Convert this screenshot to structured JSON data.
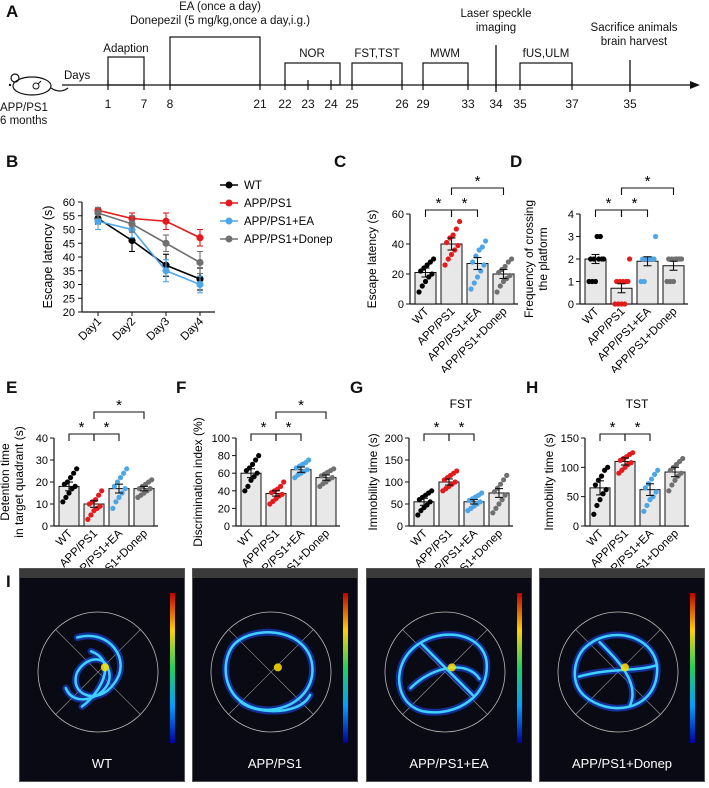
{
  "panel_letters": [
    "A",
    "B",
    "C",
    "D",
    "E",
    "F",
    "G",
    "H",
    "I"
  ],
  "timeline": {
    "model_label": "APP/PS1",
    "age_label": "6 months",
    "days_label": "Days",
    "ticks": [
      "1",
      "7",
      "8",
      "21",
      "22",
      "23",
      "24",
      "25",
      "26",
      "29",
      "33",
      "34",
      "35",
      "37",
      "35"
    ],
    "events": {
      "ea": "EA (once a day)",
      "donepezil": "Donepezil (5 mg/kg,once a day,i.g.)",
      "adaption": "Adaption",
      "nor": "NOR",
      "fst_tst": "FST,TST",
      "mwm": "MWM",
      "laser_line1": "Laser speckle",
      "laser_line2": "imaging",
      "fus": "fUS,ULM",
      "sac_line1": "Sacrifice animals",
      "sac_line2": "brain harvest"
    }
  },
  "groups": [
    "WT",
    "APP/PS1",
    "APP/PS1+EA",
    "APP/PS1+Donep"
  ],
  "colors": {
    "wt": "#000000",
    "app": "#e41a1c",
    "ea": "#4da6e8",
    "donep": "#707070",
    "bar": "#e8e8e8",
    "heat_bg": "#0a0a14"
  },
  "chart_data": [
    {
      "panel": "B",
      "type": "line",
      "ylabel": "Escape latency (s)",
      "categories": [
        "Day1",
        "Day2",
        "Day3",
        "Day4"
      ],
      "ylim": [
        20,
        60
      ],
      "yticks": [
        20,
        25,
        30,
        35,
        40,
        45,
        50,
        55,
        60
      ],
      "legend_position": "right",
      "series": [
        {
          "name": "WT",
          "values": [
            54,
            46,
            37,
            32
          ],
          "err": [
            2,
            4,
            4,
            4
          ]
        },
        {
          "name": "APP/PS1",
          "values": [
            57,
            54,
            53,
            47
          ],
          "err": [
            1,
            2,
            3,
            3
          ]
        },
        {
          "name": "APP/PS1+EA",
          "values": [
            53,
            50,
            35,
            30
          ],
          "err": [
            3,
            3,
            4,
            3
          ]
        },
        {
          "name": "APP/PS1+Donep",
          "values": [
            56,
            52,
            45,
            38
          ],
          "err": [
            2,
            3,
            3,
            4
          ]
        }
      ]
    },
    {
      "panel": "C",
      "type": "bar",
      "ylabel": "Escape latency (s)",
      "ylim": [
        0,
        60
      ],
      "yticks": [
        0,
        20,
        40,
        60
      ],
      "means": [
        21,
        40,
        27,
        20
      ],
      "sem": [
        3,
        4,
        4,
        3
      ],
      "points": [
        [
          8,
          12,
          15,
          18,
          20,
          22,
          24,
          26,
          28,
          30
        ],
        [
          26,
          30,
          33,
          36,
          39,
          41,
          44,
          46,
          50,
          55
        ],
        [
          10,
          14,
          18,
          22,
          26,
          28,
          32,
          36,
          38,
          42
        ],
        [
          8,
          12,
          15,
          17,
          19,
          21,
          23,
          25,
          28,
          30
        ]
      ],
      "significance": [
        {
          "from": 0,
          "to": 1,
          "level": 0,
          "label": "*"
        },
        {
          "from": 1,
          "to": 2,
          "level": 0,
          "label": "*"
        },
        {
          "from": 1,
          "to": 3,
          "level": 1,
          "label": "*"
        }
      ]
    },
    {
      "panel": "D",
      "type": "bar",
      "ylabel_line1": "Frequency of crossing",
      "ylabel_line2": "the platform",
      "ylim": [
        0,
        4
      ],
      "yticks": [
        0,
        1,
        2,
        3,
        4
      ],
      "means": [
        2.0,
        0.7,
        1.9,
        1.7
      ],
      "sem": [
        0.2,
        0.2,
        0.2,
        0.2
      ],
      "points": [
        [
          1,
          1,
          1,
          2,
          2,
          2,
          2,
          3,
          3,
          2
        ],
        [
          0,
          0,
          0,
          0,
          1,
          1,
          1,
          1,
          1,
          2
        ],
        [
          1,
          1,
          2,
          2,
          2,
          2,
          2,
          2,
          2,
          3
        ],
        [
          1,
          1,
          1,
          2,
          2,
          2,
          2,
          2,
          2,
          2
        ]
      ],
      "significance": [
        {
          "from": 0,
          "to": 1,
          "level": 0,
          "label": "*"
        },
        {
          "from": 1,
          "to": 2,
          "level": 0,
          "label": "*"
        },
        {
          "from": 1,
          "to": 3,
          "level": 1,
          "label": "*"
        }
      ]
    },
    {
      "panel": "E",
      "type": "bar",
      "ylabel_line1": "Detention time",
      "ylabel_line2": "in target quadrant (s)",
      "ylim": [
        0,
        40
      ],
      "yticks": [
        0,
        10,
        20,
        30,
        40
      ],
      "means": [
        18,
        10,
        17,
        17
      ],
      "sem": [
        2,
        1.5,
        2,
        1
      ],
      "points": [
        [
          11,
          13,
          15,
          17,
          18,
          19,
          20,
          22,
          24,
          26
        ],
        [
          3,
          5,
          7,
          8,
          9,
          10,
          11,
          12,
          14,
          16
        ],
        [
          8,
          11,
          13,
          15,
          17,
          18,
          20,
          22,
          24,
          26
        ],
        [
          13,
          14,
          15,
          16,
          17,
          17,
          18,
          19,
          20,
          21
        ]
      ],
      "significance": [
        {
          "from": 0,
          "to": 1,
          "level": 0,
          "label": "*"
        },
        {
          "from": 1,
          "to": 2,
          "level": 0,
          "label": "*"
        },
        {
          "from": 1,
          "to": 3,
          "level": 1,
          "label": "*"
        }
      ]
    },
    {
      "panel": "F",
      "type": "bar",
      "ylabel": "Discrimination index (%)",
      "ylim": [
        0,
        100
      ],
      "yticks": [
        0,
        20,
        40,
        60,
        80,
        100
      ],
      "means": [
        60,
        37,
        64,
        55
      ],
      "sem": [
        5,
        3,
        3,
        3
      ],
      "points": [
        [
          40,
          45,
          52,
          56,
          60,
          63,
          66,
          70,
          75,
          80
        ],
        [
          25,
          28,
          31,
          34,
          36,
          38,
          40,
          42,
          45,
          50
        ],
        [
          55,
          58,
          60,
          62,
          64,
          66,
          68,
          70,
          72,
          75
        ],
        [
          45,
          48,
          50,
          53,
          55,
          57,
          59,
          61,
          63,
          65
        ]
      ],
      "significance": [
        {
          "from": 0,
          "to": 1,
          "level": 0,
          "label": "*"
        },
        {
          "from": 1,
          "to": 2,
          "level": 0,
          "label": "*"
        },
        {
          "from": 1,
          "to": 3,
          "level": 1,
          "label": "*"
        }
      ]
    },
    {
      "panel": "G",
      "type": "bar",
      "title": "FST",
      "ylabel": "Immobility time (s)",
      "ylim": [
        0,
        200
      ],
      "yticks": [
        0,
        50,
        100,
        150,
        200
      ],
      "means": [
        55,
        100,
        55,
        75
      ],
      "sem": [
        8,
        7,
        5,
        10
      ],
      "points": [
        [
          25,
          35,
          42,
          48,
          55,
          60,
          65,
          70,
          75,
          80
        ],
        [
          80,
          85,
          90,
          95,
          100,
          105,
          110,
          115,
          120,
          125
        ],
        [
          35,
          40,
          45,
          50,
          55,
          58,
          62,
          66,
          70,
          75
        ],
        [
          30,
          40,
          50,
          60,
          70,
          78,
          86,
          95,
          105,
          115
        ]
      ],
      "significance": [
        {
          "from": 0,
          "to": 1,
          "level": 0,
          "label": "*"
        },
        {
          "from": 1,
          "to": 2,
          "level": 0,
          "label": "*"
        }
      ]
    },
    {
      "panel": "H",
      "type": "bar",
      "title": "TST",
      "ylabel": "Immobility time (s)",
      "ylim": [
        0,
        150
      ],
      "yticks": [
        0,
        50,
        100,
        150
      ],
      "means": [
        65,
        110,
        62,
        92
      ],
      "sem": [
        12,
        6,
        10,
        8
      ],
      "points": [
        [
          20,
          35,
          45,
          55,
          62,
          70,
          78,
          85,
          95,
          100
        ],
        [
          90,
          95,
          100,
          105,
          108,
          112,
          115,
          118,
          122,
          125
        ],
        [
          25,
          35,
          45,
          50,
          58,
          65,
          72,
          80,
          88,
          95
        ],
        [
          60,
          70,
          78,
          85,
          90,
          95,
          100,
          105,
          110,
          115
        ]
      ],
      "significance": [
        {
          "from": 0,
          "to": 1,
          "level": 0,
          "label": "*"
        },
        {
          "from": 1,
          "to": 2,
          "level": 0,
          "label": "*"
        }
      ]
    }
  ],
  "heatmaps": {
    "captions": [
      "WT",
      "APP/PS1",
      "APP/PS1+EA",
      "APP/PS1+Donep"
    ]
  }
}
